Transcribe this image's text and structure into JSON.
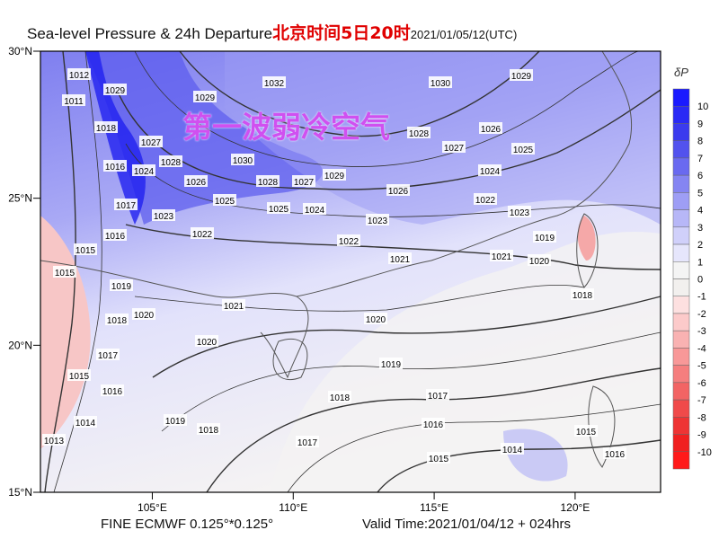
{
  "header": {
    "title": "Sea-level Pressure & 24h Departure",
    "local_time": "北京时间5日20时",
    "utc_time": "2021/01/05/12(UTC)"
  },
  "annotation": "第一波弱冷空气",
  "footer": {
    "model": "FINE ECMWF 0.125°*0.125°",
    "valid_time": "Valid Time:2021/01/04/12 + 024hrs"
  },
  "map": {
    "lon_range": [
      101,
      123
    ],
    "lat_range": [
      15,
      30
    ],
    "lon_ticks": [
      "105°E",
      "110°E",
      "115°E",
      "120°E"
    ],
    "lat_ticks": [
      "30°N",
      "25°N",
      "20°N",
      "15°N"
    ],
    "isobar_labels": [
      "1012",
      "1011",
      "1029",
      "1018",
      "1027",
      "1028",
      "1016",
      "1024",
      "1026",
      "1025",
      "1023",
      "1017",
      "1022",
      "1016",
      "1015",
      "1015",
      "1019",
      "1020",
      "1018",
      "1021",
      "1020",
      "1017",
      "1016",
      "1015",
      "1014",
      "1013",
      "1019",
      "1018",
      "1032",
      "1030",
      "1029",
      "1028",
      "1027",
      "1026",
      "1025",
      "1024",
      "1030",
      "1028",
      "1027",
      "1029",
      "1026",
      "1025",
      "1024",
      "1023",
      "1022",
      "1022",
      "1023",
      "1021",
      "1021",
      "1020",
      "1019",
      "1018",
      "1020",
      "1019",
      "1018",
      "1017",
      "1016",
      "1015",
      "1014",
      "1017",
      "1015",
      "1016",
      "1029"
    ]
  },
  "colorbar": {
    "title": "δP",
    "labels": [
      "10",
      "9",
      "8",
      "7",
      "6",
      "5",
      "4",
      "3",
      "2",
      "1",
      "0",
      "-1",
      "-2",
      "-3",
      "-4",
      "-5",
      "-6",
      "-7",
      "-8",
      "-9",
      "-10"
    ],
    "colors": [
      "#1a1aff",
      "#2a2af5",
      "#3b3bee",
      "#5252ee",
      "#6a6af0",
      "#8585f2",
      "#9e9ef5",
      "#b7b7f7",
      "#d0d0fa",
      "#e6e6fc",
      "#f4f4f4",
      "#f2f0ee",
      "#fde0e0",
      "#fccaca",
      "#f9b2b2",
      "#f89898",
      "#f57e7e",
      "#f26464",
      "#f04a4a",
      "#ee3434",
      "#f02020",
      "#ff1a1a"
    ]
  }
}
